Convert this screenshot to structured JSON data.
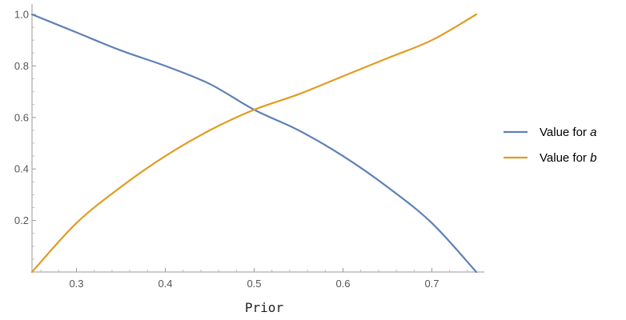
{
  "chart_data": {
    "type": "line",
    "title": "",
    "xlabel": "Prior",
    "ylabel": "",
    "xlim": [
      0.25,
      0.75
    ],
    "ylim": [
      0,
      1.0
    ],
    "xticks": [
      0.3,
      0.4,
      0.5,
      0.6,
      0.7
    ],
    "xtick_labels": [
      "0.3",
      "0.4",
      "0.5",
      "0.6",
      "0.7"
    ],
    "yticks": [
      0.2,
      0.4,
      0.6,
      0.8,
      1.0
    ],
    "ytick_labels": [
      "0.2",
      "0.4",
      "0.6",
      "0.8",
      "1.0"
    ],
    "grid": false,
    "legend_position": "right",
    "series": [
      {
        "name": "Value for a",
        "legend_prefix": "Value for ",
        "legend_var": "a",
        "color": "#5e81b5",
        "x": [
          0.25,
          0.3,
          0.35,
          0.4,
          0.45,
          0.5,
          0.55,
          0.6,
          0.65,
          0.7,
          0.75
        ],
        "y": [
          1.0,
          0.93,
          0.86,
          0.8,
          0.73,
          0.63,
          0.55,
          0.45,
          0.33,
          0.19,
          0.0
        ]
      },
      {
        "name": "Value for b",
        "legend_prefix": "Value for ",
        "legend_var": "b",
        "color": "#e19c24",
        "x": [
          0.25,
          0.3,
          0.35,
          0.4,
          0.45,
          0.5,
          0.55,
          0.6,
          0.65,
          0.7,
          0.75
        ],
        "y": [
          0.0,
          0.19,
          0.33,
          0.45,
          0.55,
          0.63,
          0.69,
          0.76,
          0.83,
          0.9,
          1.0
        ]
      }
    ]
  }
}
